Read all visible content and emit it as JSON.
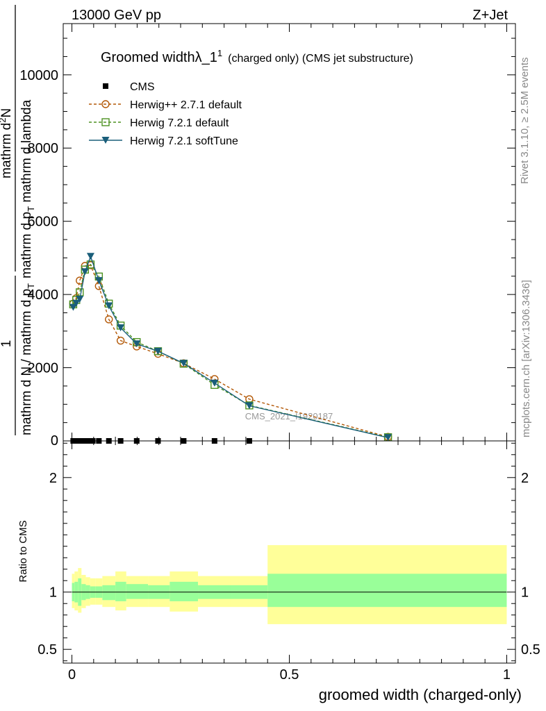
{
  "header": {
    "left": "13000 GeV pp",
    "right": "Z+Jet"
  },
  "side_text": {
    "rivet": "Rivet 3.1.10, ≥ 2.5M events",
    "mcplots": "mcplots.cern.ch [arXiv:1306.3436]"
  },
  "watermark": "CMS_2021_I1920187",
  "chart_data": [
    {
      "type": "line",
      "panel": "main",
      "title": {
        "main": "Groomed width",
        "lambda": "λ_1",
        "sup": "1",
        "suffix": "(charged only) (CMS jet substructure)"
      },
      "ylabel": {
        "numerator_top": "mathrm d",
        "numerator_sup": "2",
        "numerator_rest": "N",
        "denominator": "mathrm d p",
        "denominator_sub": "T",
        "denominator_rest": " mathrm d lambda",
        "prefactor": "1",
        "normalisation": "mathrm d N / mathrm d p",
        "normalisation_sub": "T"
      },
      "xlim": [
        -0.02,
        1.02
      ],
      "ylim": [
        0,
        11400
      ],
      "yticks": [
        2000,
        4000,
        6000,
        8000,
        10000
      ],
      "ytick_labels": [
        "2000",
        "4000",
        "6000",
        "8000",
        "10000"
      ],
      "ytick_zero_label": "0",
      "legend_position": "top-left",
      "series": [
        {
          "name": "CMS",
          "color": "#000000",
          "marker": "square",
          "x": [
            0.003,
            0.01,
            0.018,
            0.027,
            0.037,
            0.048,
            0.062,
            0.085,
            0.112,
            0.149,
            0.198,
            0.257,
            0.328,
            0.408
          ],
          "y": [
            0,
            0,
            0,
            0,
            0,
            0,
            0,
            0,
            0,
            0,
            0,
            0,
            0,
            0
          ]
        },
        {
          "name": "Herwig++ 2.7.1 default",
          "color": "#b35806",
          "marker": "circle-open",
          "dash": "4,3",
          "x": [
            0.003,
            0.01,
            0.018,
            0.03,
            0.043,
            0.062,
            0.085,
            0.112,
            0.149,
            0.198,
            0.257,
            0.328,
            0.408,
            0.727
          ],
          "y": [
            3750,
            3900,
            4380,
            4780,
            4800,
            4230,
            3320,
            2740,
            2580,
            2380,
            2120,
            1690,
            1140,
            110
          ]
        },
        {
          "name": "Herwig 7.2.1 default",
          "color": "#4d9221",
          "marker": "square-open",
          "dash": "4,3",
          "x": [
            0.003,
            0.01,
            0.018,
            0.03,
            0.043,
            0.062,
            0.085,
            0.112,
            0.149,
            0.198,
            0.257,
            0.328,
            0.408,
            0.727
          ],
          "y": [
            3730,
            3850,
            4060,
            4680,
            4820,
            4490,
            3750,
            3150,
            2700,
            2450,
            2110,
            1530,
            970,
            100
          ]
        },
        {
          "name": "Herwig 7.2.1 softTune",
          "color": "#1a5e7a",
          "marker": "triangle-down",
          "dash": "",
          "x": [
            0.003,
            0.01,
            0.018,
            0.03,
            0.043,
            0.062,
            0.085,
            0.112,
            0.149,
            0.198,
            0.257,
            0.328,
            0.408,
            0.727
          ],
          "y": [
            3650,
            3760,
            3870,
            4620,
            5040,
            4380,
            3690,
            3090,
            2650,
            2450,
            2120,
            1580,
            960,
            90
          ]
        }
      ]
    },
    {
      "type": "area",
      "panel": "ratio",
      "ylabel": "Ratio to CMS",
      "xlabel": "groomed width (charged-only)",
      "ylim": [
        0.38,
        2.32
      ],
      "yticks": [
        0.5,
        1,
        2
      ],
      "ytick_labels": [
        "0.5",
        "1",
        "2"
      ],
      "xticks": [
        0,
        0.5,
        1
      ],
      "xtick_labels": [
        "0",
        "0.5",
        "1"
      ],
      "reference_line": 1,
      "bin_edges": [
        0,
        0.006,
        0.014,
        0.022,
        0.032,
        0.042,
        0.054,
        0.07,
        0.1,
        0.125,
        0.175,
        0.225,
        0.29,
        0.365,
        0.45,
        1.0
      ],
      "band_inner": {
        "color": "#99ff99",
        "lower": [
          0.92,
          0.91,
          0.88,
          0.93,
          0.94,
          0.95,
          0.95,
          0.93,
          0.92,
          0.94,
          0.94,
          0.92,
          0.94,
          0.94,
          0.87
        ],
        "upper": [
          1.08,
          1.09,
          1.12,
          1.07,
          1.06,
          1.05,
          1.05,
          1.06,
          1.09,
          1.07,
          1.06,
          1.09,
          1.06,
          1.06,
          1.16
        ]
      },
      "band_outer": {
        "color": "#ffff99",
        "lower": [
          0.86,
          0.84,
          0.82,
          0.86,
          0.88,
          0.89,
          0.89,
          0.87,
          0.84,
          0.87,
          0.87,
          0.83,
          0.87,
          0.87,
          0.72
        ],
        "upper": [
          1.16,
          1.18,
          1.21,
          1.15,
          1.13,
          1.12,
          1.12,
          1.14,
          1.18,
          1.14,
          1.14,
          1.18,
          1.14,
          1.14,
          1.41
        ]
      }
    }
  ]
}
